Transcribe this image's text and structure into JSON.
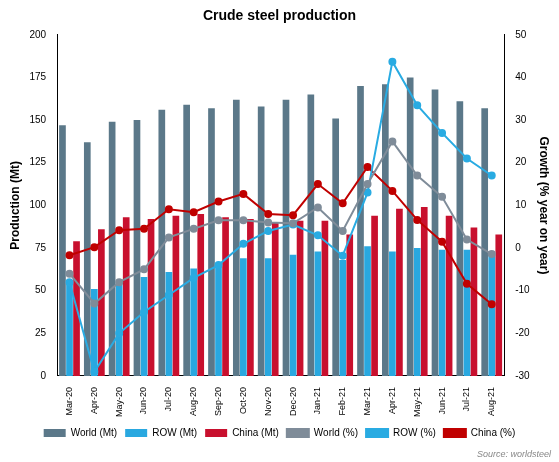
{
  "chart_data": {
    "type": "bar",
    "title": "Crude steel production",
    "y_label": "Production (Mt)",
    "y2_label": "Growth (% year on year)",
    "annotations": [
      "Source: worldsteel"
    ],
    "categories": [
      "Mar-20",
      "Apr-20",
      "May-20",
      "Jun-20",
      "Jul-20",
      "Aug-20",
      "Sep-20",
      "Oct-20",
      "Nov-20",
      "Dec-20",
      "Jan-21",
      "Feb-21",
      "Mar-21",
      "Apr-21",
      "May-21",
      "Jun-21",
      "Jul-21",
      "Aug-21"
    ],
    "series": [
      {
        "name": "World (Mt)",
        "type": "bar",
        "color": "#5b7889",
        "values": [
          147,
          137,
          149,
          150,
          156,
          159,
          157,
          162,
          158,
          162,
          165,
          151,
          170,
          171,
          175,
          168,
          161,
          157
        ]
      },
      {
        "name": "ROW (Mt)",
        "type": "bar",
        "color": "#29a8e0",
        "values": [
          55,
          51,
          56,
          58,
          61,
          63,
          64,
          69,
          69,
          71,
          73,
          68,
          76,
          73,
          75,
          74,
          74,
          73
        ]
      },
      {
        "name": "China (Mt)",
        "type": "bar",
        "color": "#c8102e",
        "values": [
          79,
          86,
          93,
          92,
          94,
          95,
          93,
          92,
          90,
          91,
          91,
          83,
          94,
          98,
          99,
          94,
          87,
          83
        ]
      },
      {
        "name": "World (%)",
        "type": "line",
        "axis": "y2",
        "color": "#7f8c99",
        "marker": "circle",
        "values": [
          -6,
          -13,
          -8,
          -5,
          2.5,
          4.5,
          6.5,
          6.5,
          6,
          5.8,
          9.5,
          4,
          15,
          25,
          17,
          12,
          2,
          -1.4
        ]
      },
      {
        "name": "ROW (%)",
        "type": "line",
        "axis": "y2",
        "color": "#29abe2",
        "marker": "circle",
        "values": [
          -8,
          -29,
          -20,
          -15,
          -11,
          -7,
          -4,
          1,
          4,
          5.5,
          3,
          -1.8,
          13,
          43.7,
          33.5,
          27,
          21,
          17
        ]
      },
      {
        "name": "China (%)",
        "type": "line",
        "axis": "y2",
        "color": "#c00000",
        "marker": "circle",
        "values": [
          -1.7,
          0.2,
          4.2,
          4.5,
          9.1,
          8.4,
          10.9,
          12.7,
          8,
          7.7,
          15,
          10.5,
          19,
          13.4,
          6.6,
          1.5,
          -8.4,
          -13.2
        ]
      }
    ],
    "ylim": [
      0,
      200
    ],
    "yticks": [
      0,
      25,
      50,
      75,
      100,
      125,
      150,
      175,
      200
    ],
    "y2lim": [
      -30,
      50
    ],
    "y2ticks": [
      -30,
      -20,
      -10,
      0,
      10,
      20,
      30,
      40,
      50
    ],
    "grid": false,
    "legend": "bottom"
  }
}
